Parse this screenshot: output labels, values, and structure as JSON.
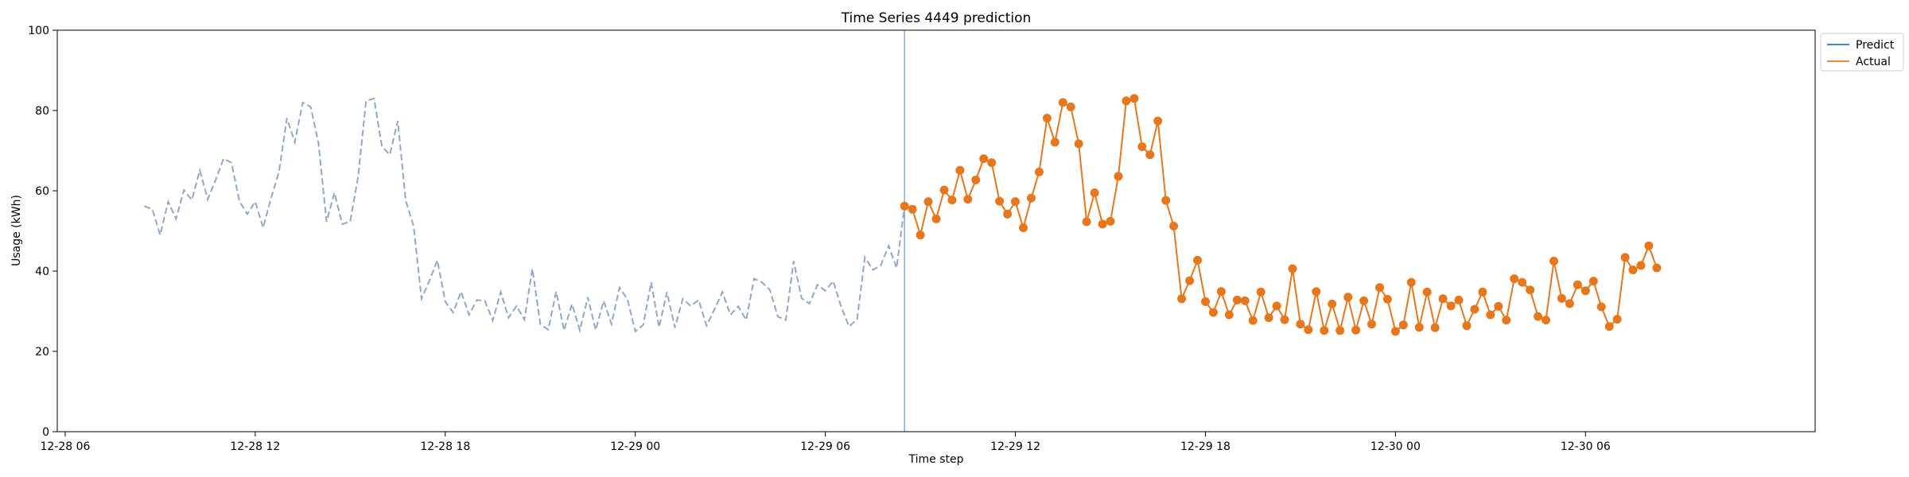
{
  "chart_data": {
    "type": "line",
    "title": "Time Series 4449 prediction",
    "xlabel": "Time step",
    "ylabel": "Usage (kWh)",
    "ylim": [
      0,
      100
    ],
    "xlim": [
      "2012-12-28 05:45",
      "2012-12-30 13:15"
    ],
    "yticks": [
      0,
      20,
      40,
      60,
      80,
      100
    ],
    "xticks": [
      {
        "t": "2012-12-28 06:00",
        "label": "12-28 06"
      },
      {
        "t": "2012-12-28 12:00",
        "label": "12-28 12"
      },
      {
        "t": "2012-12-28 18:00",
        "label": "12-28 18"
      },
      {
        "t": "2012-12-29 00:00",
        "label": "12-29 00"
      },
      {
        "t": "2012-12-29 06:00",
        "label": "12-29 06"
      },
      {
        "t": "2012-12-29 12:00",
        "label": "12-29 12"
      },
      {
        "t": "2012-12-29 18:00",
        "label": "12-29 18"
      },
      {
        "t": "2012-12-30 00:00",
        "label": "12-30 00"
      },
      {
        "t": "2012-12-30 06:00",
        "label": "12-30 06"
      }
    ],
    "split_time": "2012-12-29 08:30",
    "legend": {
      "placement": "outside-top-right",
      "entries": [
        "Predict",
        "Actual"
      ]
    },
    "grid": false,
    "series": [
      {
        "name": "history",
        "style": "dashed",
        "color": "#8fa8c8",
        "start": "2012-12-28 08:30",
        "step_minutes": 15,
        "values": [
          56.2,
          55.4,
          49,
          57.3,
          53,
          60.2,
          57.7,
          65.1,
          57.9,
          62.7,
          68,
          67,
          57.4,
          54.2,
          57.3,
          50.8,
          58.2,
          64.7,
          78.1,
          72.1,
          82,
          80.9,
          71.7,
          52.3,
          59.5,
          51.7,
          52.4,
          63.6,
          82.4,
          83,
          71,
          69,
          77.4,
          57.6,
          51.2,
          33.1,
          37.6,
          42.7,
          32.4,
          29.7,
          34.9,
          29.1,
          32.8,
          32.6,
          27.7,
          34.8,
          28.4,
          31.3,
          27.9,
          40.6,
          26.8,
          25.4,
          34.9,
          25.2,
          31.8,
          25.2,
          33.5,
          25.3,
          32.6,
          26.8,
          35.9,
          33,
          25,
          26.6,
          37.2,
          26,
          34.8,
          25.9,
          33.1,
          31.3,
          32.8,
          26.4,
          30.5,
          34.8,
          29.1,
          31.2,
          27.8,
          38.1,
          37.2,
          35.3,
          28.7,
          27.8,
          42.5,
          33.2,
          31.9,
          36.6,
          35.1,
          37.5,
          31.1,
          26.2,
          28,
          43.4,
          40.3,
          41.4,
          46.3,
          40.8,
          56.2
        ]
      },
      {
        "name": "Actual",
        "style": "solid-markers",
        "color": "#e8761b",
        "start": "2012-12-29 08:30",
        "step_minutes": 15,
        "values": [
          56.2,
          55.4,
          49,
          57.3,
          53,
          60.2,
          57.7,
          65.1,
          57.9,
          62.7,
          68,
          67,
          57.4,
          54.2,
          57.3,
          50.8,
          58.2,
          64.7,
          78.1,
          72.1,
          82,
          80.9,
          71.7,
          52.3,
          59.5,
          51.7,
          52.4,
          63.6,
          82.4,
          83,
          71,
          69,
          77.4,
          57.6,
          51.2,
          33.1,
          37.6,
          42.7,
          32.4,
          29.7,
          34.9,
          29.1,
          32.8,
          32.6,
          27.7,
          34.8,
          28.4,
          31.3,
          27.9,
          40.6,
          26.8,
          25.4,
          34.9,
          25.2,
          31.8,
          25.2,
          33.5,
          25.3,
          32.6,
          26.8,
          35.9,
          33,
          25,
          26.6,
          37.2,
          26,
          34.8,
          25.9,
          33.1,
          31.3,
          32.8,
          26.4,
          30.5,
          34.8,
          29.1,
          31.2,
          27.8,
          38.1,
          37.2,
          35.3,
          28.7,
          27.8,
          42.5,
          33.2,
          31.9,
          36.6,
          35.1,
          37.5,
          31.1,
          26.2,
          28,
          43.4,
          40.3,
          41.4,
          46.3,
          40.8
        ]
      },
      {
        "name": "Predict",
        "style": "solid",
        "color": "#1f77b4",
        "values": []
      }
    ]
  }
}
